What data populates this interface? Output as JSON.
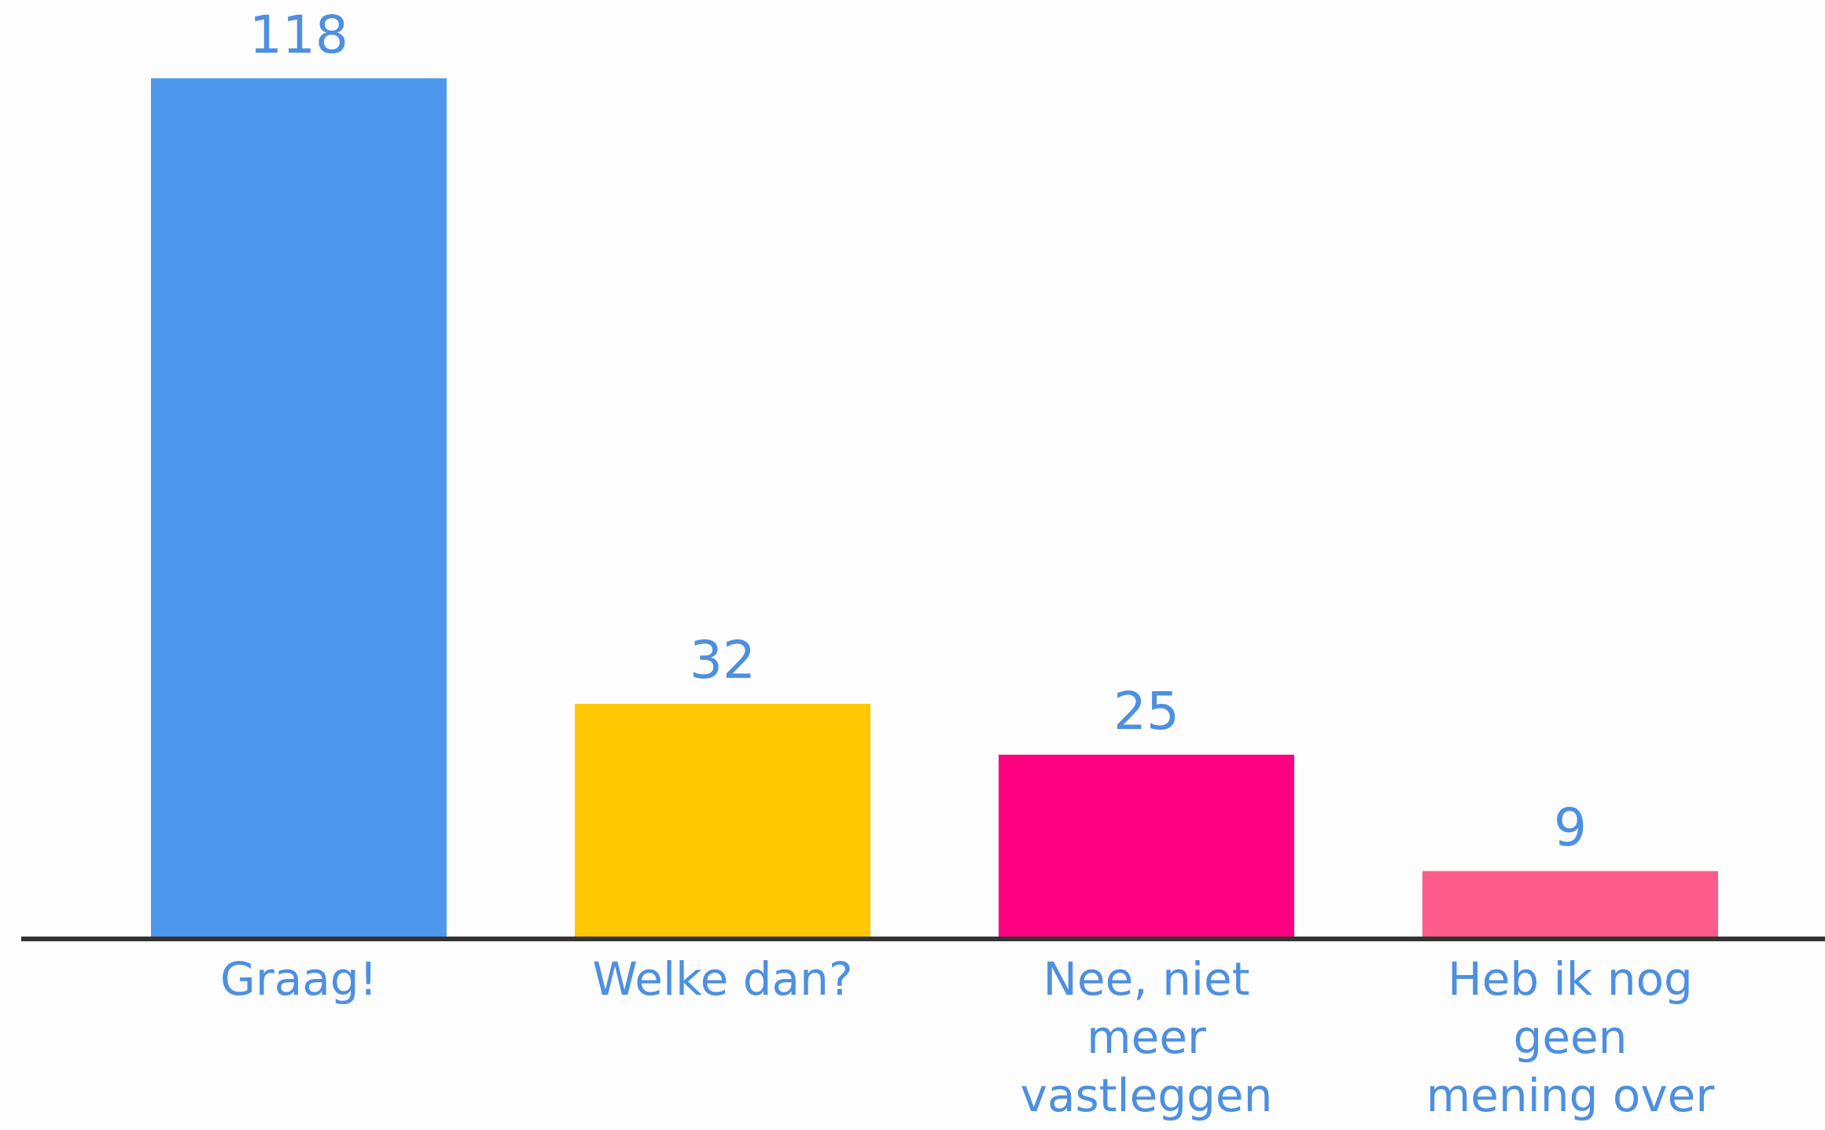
{
  "chart_data": {
    "type": "bar",
    "categories": [
      "Graag!",
      "Welke dan?",
      "Nee, niet\nmeer\nvastleggen",
      "Heb ik nog\ngeen\nmening over"
    ],
    "values": [
      118,
      32,
      25,
      9
    ],
    "colors": [
      "#4f98ef",
      "#ffc800",
      "#ff0080",
      "#ff5a8c"
    ]
  }
}
